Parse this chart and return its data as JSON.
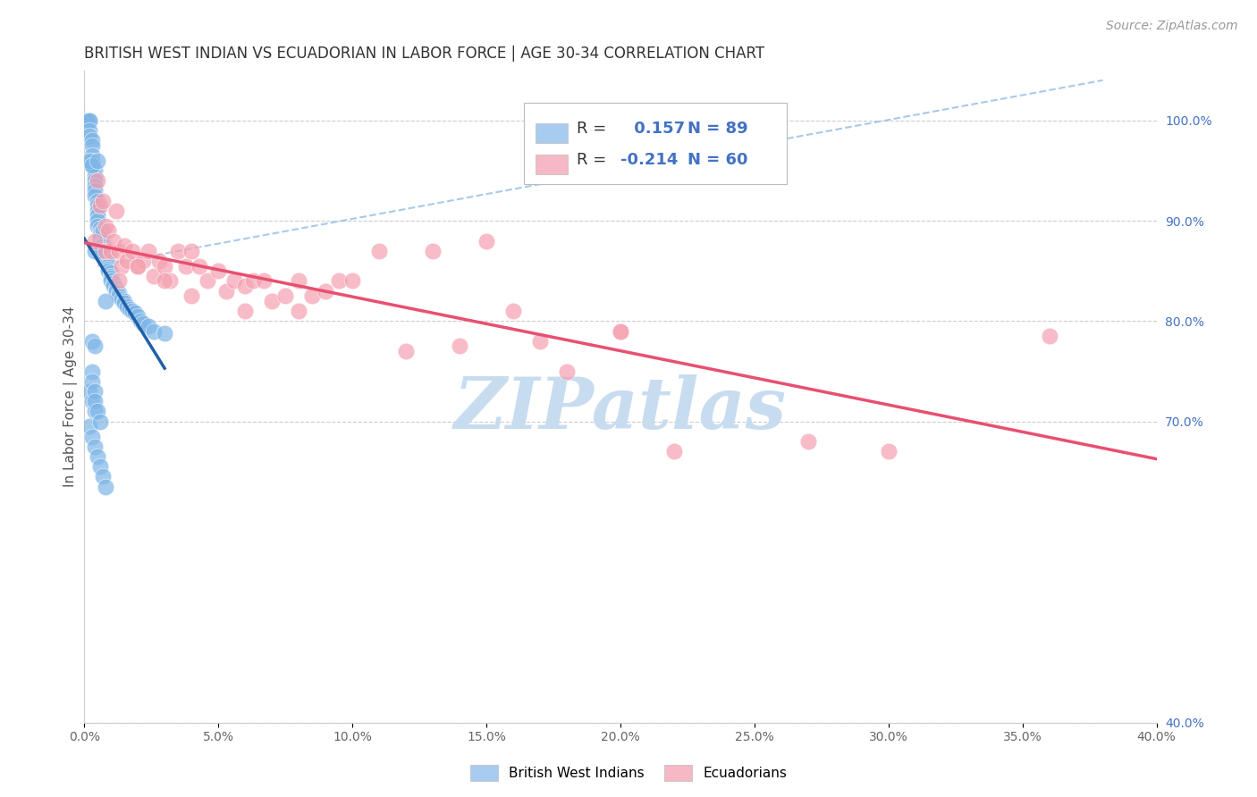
{
  "title": "BRITISH WEST INDIAN VS ECUADORIAN IN LABOR FORCE | AGE 30-34 CORRELATION CHART",
  "source": "Source: ZipAtlas.com",
  "ylabel": "In Labor Force | Age 30-34",
  "x_tick_labels": [
    "0.0%",
    "5.0%",
    "10.0%",
    "15.0%",
    "20.0%",
    "25.0%",
    "30.0%",
    "35.0%",
    "40.0%"
  ],
  "x_tick_vals": [
    0.0,
    0.05,
    0.1,
    0.15,
    0.2,
    0.25,
    0.3,
    0.35,
    0.4
  ],
  "y_tick_labels_right": [
    "100.0%",
    "90.0%",
    "80.0%",
    "70.0%",
    "40.0%"
  ],
  "y_tick_vals_right": [
    1.0,
    0.9,
    0.8,
    0.7,
    0.4
  ],
  "xlim": [
    0.0,
    0.4
  ],
  "ylim": [
    0.4,
    1.05
  ],
  "R_blue": 0.157,
  "N_blue": 89,
  "R_pink": -0.214,
  "N_pink": 60,
  "blue_color": "#7EB6E8",
  "pink_color": "#F5A0B0",
  "trend_blue_color": "#2060A8",
  "trend_pink_color": "#E85070",
  "dashed_line_color": "#A0C4E8",
  "watermark_color": "#C8DCF0",
  "legend_blue_box": "#A8CCF0",
  "legend_pink_box": "#F5B8C4",
  "blue_scatter_x": [
    0.001,
    0.001,
    0.001,
    0.002,
    0.002,
    0.002,
    0.002,
    0.003,
    0.003,
    0.003,
    0.003,
    0.003,
    0.004,
    0.004,
    0.004,
    0.004,
    0.004,
    0.004,
    0.005,
    0.005,
    0.005,
    0.005,
    0.005,
    0.005,
    0.006,
    0.006,
    0.006,
    0.006,
    0.007,
    0.007,
    0.007,
    0.007,
    0.007,
    0.008,
    0.008,
    0.008,
    0.008,
    0.009,
    0.009,
    0.009,
    0.009,
    0.01,
    0.01,
    0.01,
    0.01,
    0.011,
    0.011,
    0.012,
    0.012,
    0.013,
    0.013,
    0.014,
    0.015,
    0.015,
    0.016,
    0.017,
    0.018,
    0.019,
    0.02,
    0.021,
    0.022,
    0.024,
    0.026,
    0.03,
    0.002,
    0.003,
    0.004,
    0.005,
    0.006,
    0.007,
    0.008,
    0.003,
    0.004,
    0.002,
    0.003,
    0.004,
    0.005,
    0.006,
    0.007,
    0.008,
    0.002,
    0.003,
    0.004,
    0.003,
    0.003,
    0.004,
    0.004,
    0.005,
    0.006
  ],
  "blue_scatter_y": [
    1.0,
    1.0,
    1.0,
    1.0,
    1.0,
    0.99,
    0.985,
    0.98,
    0.975,
    0.965,
    0.96,
    0.955,
    0.95,
    0.945,
    0.94,
    0.935,
    0.93,
    0.925,
    0.92,
    0.915,
    0.91,
    0.905,
    0.9,
    0.895,
    0.892,
    0.888,
    0.885,
    0.882,
    0.88,
    0.877,
    0.875,
    0.872,
    0.87,
    0.868,
    0.865,
    0.862,
    0.86,
    0.858,
    0.855,
    0.852,
    0.85,
    0.848,
    0.845,
    0.843,
    0.84,
    0.838,
    0.835,
    0.832,
    0.83,
    0.828,
    0.825,
    0.822,
    0.82,
    0.818,
    0.815,
    0.812,
    0.81,
    0.808,
    0.805,
    0.8,
    0.798,
    0.795,
    0.79,
    0.788,
    0.96,
    0.955,
    0.87,
    0.96,
    0.87,
    0.89,
    0.82,
    0.78,
    0.775,
    0.695,
    0.685,
    0.675,
    0.665,
    0.655,
    0.645,
    0.635,
    0.73,
    0.72,
    0.71,
    0.75,
    0.74,
    0.73,
    0.72,
    0.71,
    0.7
  ],
  "pink_scatter_x": [
    0.004,
    0.005,
    0.006,
    0.007,
    0.008,
    0.008,
    0.009,
    0.01,
    0.011,
    0.012,
    0.013,
    0.014,
    0.015,
    0.016,
    0.018,
    0.02,
    0.022,
    0.024,
    0.026,
    0.028,
    0.03,
    0.032,
    0.035,
    0.038,
    0.04,
    0.043,
    0.046,
    0.05,
    0.053,
    0.056,
    0.06,
    0.063,
    0.067,
    0.07,
    0.075,
    0.08,
    0.085,
    0.09,
    0.095,
    0.1,
    0.11,
    0.12,
    0.13,
    0.14,
    0.15,
    0.16,
    0.17,
    0.18,
    0.2,
    0.22,
    0.013,
    0.02,
    0.03,
    0.04,
    0.06,
    0.08,
    0.2,
    0.27,
    0.36,
    0.3
  ],
  "pink_scatter_y": [
    0.88,
    0.94,
    0.915,
    0.92,
    0.895,
    0.87,
    0.89,
    0.87,
    0.88,
    0.91,
    0.87,
    0.855,
    0.875,
    0.86,
    0.87,
    0.855,
    0.86,
    0.87,
    0.845,
    0.86,
    0.855,
    0.84,
    0.87,
    0.855,
    0.87,
    0.855,
    0.84,
    0.85,
    0.83,
    0.84,
    0.835,
    0.84,
    0.84,
    0.82,
    0.825,
    0.84,
    0.825,
    0.83,
    0.84,
    0.84,
    0.87,
    0.77,
    0.87,
    0.775,
    0.88,
    0.81,
    0.78,
    0.75,
    0.79,
    0.67,
    0.84,
    0.855,
    0.84,
    0.825,
    0.81,
    0.81,
    0.79,
    0.68,
    0.785,
    0.67
  ],
  "title_fontsize": 12,
  "axis_label_fontsize": 11,
  "tick_fontsize": 10,
  "legend_fontsize": 13,
  "source_fontsize": 10
}
